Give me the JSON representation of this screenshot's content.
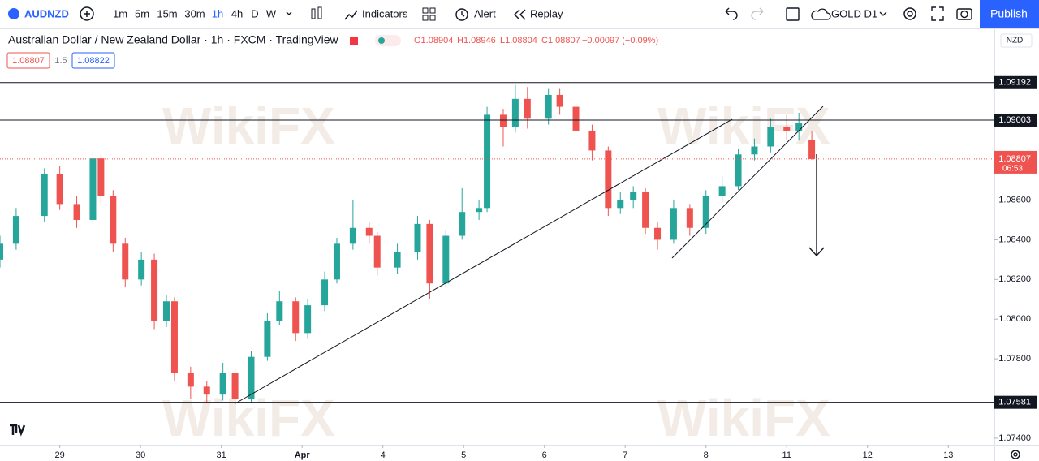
{
  "toolbar": {
    "symbol": "AUDNZD",
    "intervals": [
      "1m",
      "5m",
      "15m",
      "30m",
      "1h",
      "4h",
      "D",
      "W"
    ],
    "indicators": "Indicators",
    "alert": "Alert",
    "replay": "Replay",
    "layout": "GOLD D1",
    "publish": "Publish"
  },
  "legend": {
    "title": "Australian Dollar / New Zealand Dollar · 1h · FXCM · TradingView",
    "open": "O1.08904",
    "high": "H1.08946",
    "low": "L1.08804",
    "close": "C1.08807",
    "change": "−0.00097 (−0.09%)",
    "sell": "1.08807",
    "spread": "1.5",
    "buy": "1.08822"
  },
  "currency": "NZD",
  "watermark": "WikiFX",
  "chart_data": {
    "type": "candlestick",
    "up_color": "#26a69a",
    "down_color": "#ef5350",
    "x": [
      -0.74,
      -0.54,
      -0.19,
      0,
      0.21,
      0.41,
      0.51,
      0.66,
      0.81,
      1.01,
      1.17,
      1.32,
      1.42,
      1.62,
      1.82,
      2.02,
      2.17,
      2.37,
      2.57,
      2.72,
      2.92,
      3.07,
      3.28,
      3.43,
      3.63,
      3.83,
      3.93,
      4.18,
      4.43,
      4.58,
      4.78,
      4.98,
      5.19,
      5.29,
      5.49,
      5.64,
      5.79,
      6.05,
      6.19,
      6.39,
      6.59,
      6.79,
      6.94,
      7.1,
      7.25,
      7.4,
      7.6,
      7.8,
      8,
      8.2,
      8.4,
      8.6,
      8.8,
      9,
      9.15,
      9.31
    ],
    "open": [
      1.083,
      1.0838,
      1.0852,
      1.0873,
      1.0858,
      1.085,
      1.0881,
      1.0862,
      1.0838,
      1.082,
      1.083,
      1.0799,
      1.0809,
      1.0773,
      1.0766,
      1.0762,
      1.0773,
      1.076,
      1.0781,
      1.0799,
      1.0809,
      1.0793,
      1.0807,
      1.082,
      1.0838,
      1.0846,
      1.0842,
      1.0826,
      1.0834,
      1.0848,
      1.0818,
      1.0842,
      1.0854,
      1.0856,
      1.0903,
      1.0897,
      1.0911,
      1.0901,
      1.0913,
      1.0907,
      1.0895,
      1.0885,
      1.0856,
      1.086,
      1.0864,
      1.0846,
      1.084,
      1.0856,
      1.0846,
      1.0862,
      1.0867,
      1.0883,
      1.0887,
      1.0897,
      1.0895,
      1.08904
    ],
    "high": [
      1.0842,
      1.0856,
      1.0876,
      1.0877,
      1.0862,
      1.0884,
      1.0883,
      1.0865,
      1.0841,
      1.0834,
      1.0833,
      1.0812,
      1.0811,
      1.0776,
      1.0769,
      1.0778,
      1.0775,
      1.0784,
      1.0803,
      1.0814,
      1.0811,
      1.081,
      1.0824,
      1.0841,
      1.086,
      1.0849,
      1.0844,
      1.0838,
      1.0852,
      1.085,
      1.0845,
      1.0866,
      1.086,
      1.0907,
      1.0906,
      1.0918,
      1.0917,
      1.0916,
      1.0916,
      1.0909,
      1.0898,
      1.0887,
      1.0864,
      1.0867,
      1.0866,
      1.0849,
      1.086,
      1.0858,
      1.0865,
      1.0872,
      1.0886,
      1.0891,
      1.0901,
      1.0903,
      1.0904,
      1.08946
    ],
    "low": [
      1.0826,
      1.0835,
      1.0849,
      1.0855,
      1.0846,
      1.0848,
      1.0858,
      1.0834,
      1.0816,
      1.0817,
      1.0795,
      1.0796,
      1.0769,
      1.076,
      1.0758,
      1.0759,
      1.0757,
      1.0758,
      1.0779,
      1.0797,
      1.0789,
      1.079,
      1.0804,
      1.0818,
      1.0835,
      1.0838,
      1.0822,
      1.0823,
      1.083,
      1.081,
      1.0816,
      1.084,
      1.085,
      1.0854,
      1.0887,
      1.0894,
      1.0896,
      1.0898,
      1.0903,
      1.0891,
      1.088,
      1.0852,
      1.0853,
      1.0856,
      1.0843,
      1.0835,
      1.0838,
      1.0842,
      1.0843,
      1.0859,
      1.0865,
      1.088,
      1.0884,
      1.089,
      1.089,
      1.08804
    ],
    "close": [
      1.0838,
      1.0852,
      1.0873,
      1.0858,
      1.085,
      1.0881,
      1.0862,
      1.0838,
      1.082,
      1.083,
      1.0799,
      1.0809,
      1.0773,
      1.0766,
      1.0762,
      1.0773,
      1.076,
      1.0781,
      1.0799,
      1.0809,
      1.0793,
      1.0807,
      1.082,
      1.0838,
      1.0846,
      1.0842,
      1.0826,
      1.0834,
      1.0848,
      1.0818,
      1.0842,
      1.0854,
      1.0856,
      1.0903,
      1.0897,
      1.0911,
      1.0901,
      1.0913,
      1.0907,
      1.0895,
      1.0885,
      1.0856,
      1.086,
      1.0864,
      1.0846,
      1.084,
      1.0856,
      1.0846,
      1.0862,
      1.0867,
      1.0883,
      1.0887,
      1.0897,
      1.0895,
      1.0899,
      1.08807
    ],
    "xlim": [
      -0.74,
      11.57
    ],
    "ylim": [
      1.07367,
      1.09461
    ],
    "xticks": [
      {
        "value": 0,
        "label": "29"
      },
      {
        "value": 1,
        "label": "30"
      },
      {
        "value": 2,
        "label": "31"
      },
      {
        "value": 3,
        "label": "Apr"
      },
      {
        "value": 4,
        "label": "4"
      },
      {
        "value": 5,
        "label": "5"
      },
      {
        "value": 6,
        "label": "6"
      },
      {
        "value": 7,
        "label": "7"
      },
      {
        "value": 8,
        "label": "8"
      },
      {
        "value": 9,
        "label": "11"
      },
      {
        "value": 10,
        "label": "12"
      },
      {
        "value": 11,
        "label": "13"
      }
    ],
    "yticks": [
      {
        "value": 1.086,
        "label": "1.08600"
      },
      {
        "value": 1.084,
        "label": "1.08400"
      },
      {
        "value": 1.082,
        "label": "1.08200"
      },
      {
        "value": 1.08,
        "label": "1.08000"
      },
      {
        "value": 1.078,
        "label": "1.07800"
      },
      {
        "value": 1.074,
        "label": "1.07400"
      }
    ],
    "hlines": [
      {
        "value": 1.09192,
        "label": "1.09192"
      },
      {
        "value": 1.09003,
        "label": "1.09003"
      },
      {
        "value": 1.07581,
        "label": "1.07581"
      }
    ],
    "last_price": {
      "value": 1.08807,
      "label": "1.08807"
    },
    "countdown": "06:53"
  }
}
